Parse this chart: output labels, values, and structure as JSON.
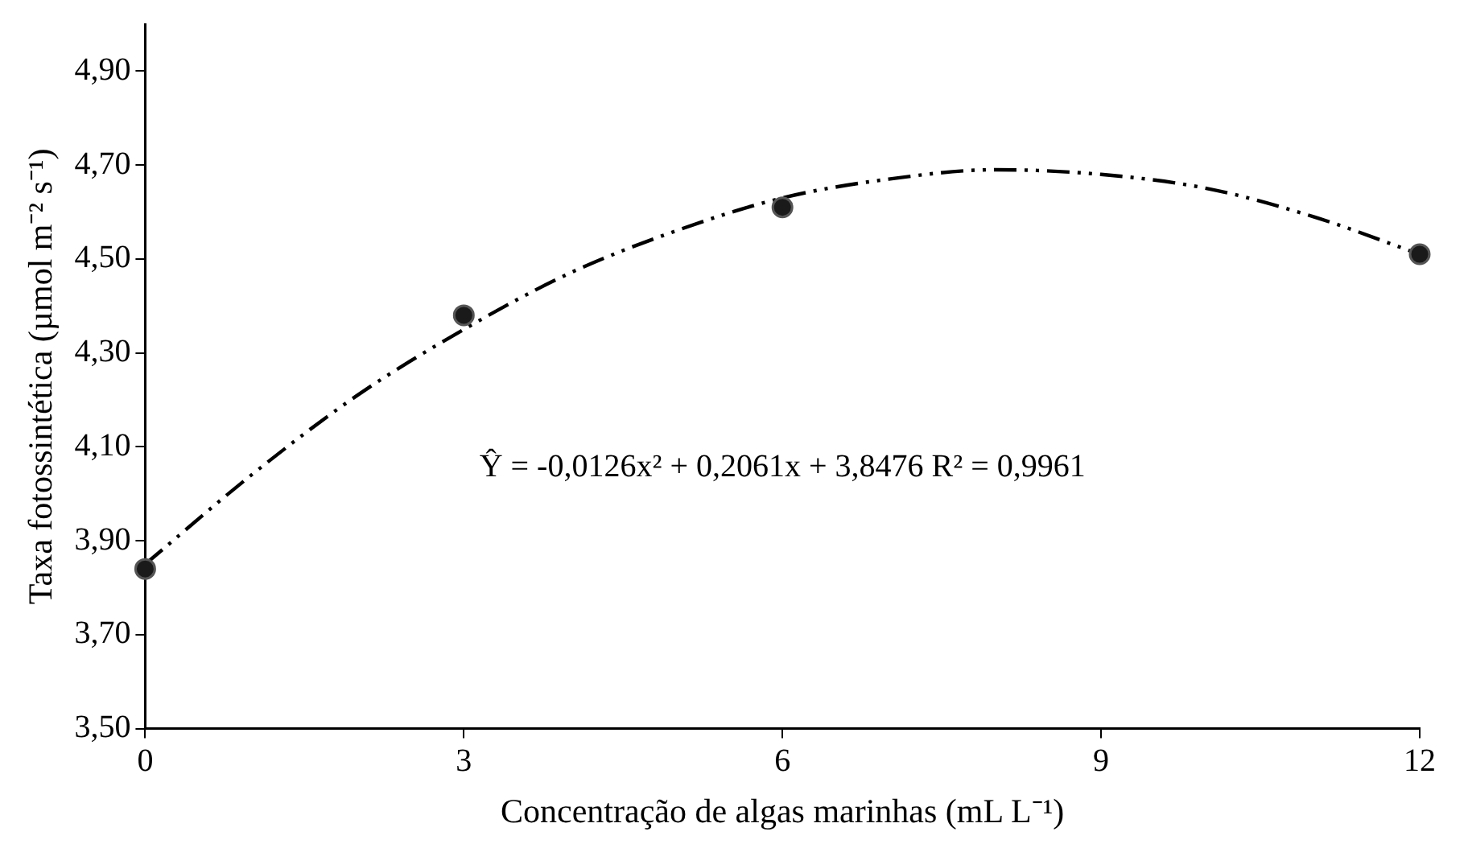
{
  "chart_data": {
    "type": "scatter",
    "xlabel": "Concentração de algas marinhas (mL L⁻¹)",
    "ylabel": "Taxa fotossintética (µmol m⁻² s⁻¹)",
    "xlim": [
      0,
      12
    ],
    "xticks": [
      0,
      3,
      6,
      9,
      12
    ],
    "ylim": [
      3.5,
      5.0
    ],
    "yticks": [
      {
        "value": 3.5,
        "label": "3,50"
      },
      {
        "value": 3.7,
        "label": "3,70"
      },
      {
        "value": 3.9,
        "label": "3,90"
      },
      {
        "value": 4.1,
        "label": "4,10"
      },
      {
        "value": 4.3,
        "label": "4,30"
      },
      {
        "value": 4.5,
        "label": "4,50"
      },
      {
        "value": 4.7,
        "label": "4,70"
      },
      {
        "value": 4.9,
        "label": "4,90"
      }
    ],
    "grid": false,
    "legend": false,
    "series": [
      {
        "color": "#1a1a1a",
        "marker": "circle",
        "x": [
          0,
          3,
          6,
          12
        ],
        "values": [
          3.84,
          4.38,
          4.61,
          4.51
        ]
      },
      {
        "type": "line",
        "color": "#000000",
        "marker": "none",
        "line_style": "dashed",
        "x": [
          0,
          1,
          2,
          3,
          4,
          5,
          6,
          7,
          8,
          9,
          10,
          11,
          12
        ],
        "values": [
          3.85,
          4.04,
          4.21,
          4.35,
          4.47,
          4.56,
          4.63,
          4.67,
          4.69,
          4.68,
          4.65,
          4.59,
          4.51
        ]
      }
    ],
    "annotations": [
      "Ŷ = -0,0126x² + 0,2061x + 3,8476 R² = 0,9961"
    ]
  }
}
